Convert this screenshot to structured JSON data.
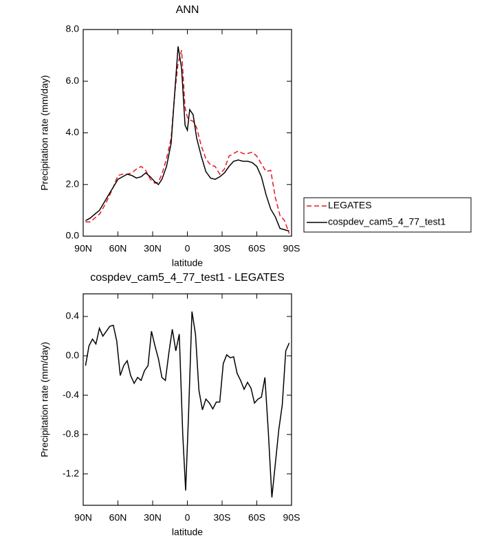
{
  "chart_data": [
    {
      "type": "line",
      "title": "ANN",
      "x_label": "latitude",
      "y_label": "Precipitation rate (mm/day)",
      "x": [
        88,
        84,
        80,
        76,
        72,
        68,
        64,
        60,
        56,
        52,
        48,
        44,
        40,
        36,
        32,
        28,
        25,
        22,
        18,
        14,
        11,
        8,
        5,
        2,
        0,
        -2,
        -5,
        -8,
        -12,
        -16,
        -20,
        -24,
        -28,
        -32,
        -36,
        -40,
        -44,
        -48,
        -52,
        -56,
        -60,
        -64,
        -68,
        -72,
        -76,
        -80,
        -84,
        -88
      ],
      "series": [
        {
          "name": "LEGATES",
          "color": "#e8141e",
          "dash": true,
          "values": [
            0.55,
            0.55,
            0.7,
            0.85,
            1.15,
            1.5,
            1.9,
            2.35,
            2.4,
            2.4,
            2.45,
            2.6,
            2.7,
            2.55,
            2.2,
            2.05,
            2.1,
            2.4,
            3.0,
            3.8,
            5.5,
            6.7,
            7.2,
            5.0,
            4.6,
            4.5,
            4.45,
            4.2,
            3.5,
            3.0,
            2.75,
            2.7,
            2.4,
            2.6,
            3.1,
            3.2,
            3.3,
            3.2,
            3.2,
            3.25,
            3.1,
            2.8,
            2.5,
            2.55,
            1.5,
            0.8,
            0.6,
            0.1
          ]
        },
        {
          "name": "cospdev_cam5_4_77_test1",
          "color": "#000000",
          "dash": false,
          "values": [
            0.6,
            0.7,
            0.85,
            1.0,
            1.3,
            1.6,
            1.9,
            2.2,
            2.3,
            2.4,
            2.35,
            2.25,
            2.3,
            2.45,
            2.3,
            2.1,
            2.0,
            2.2,
            2.7,
            3.6,
            5.5,
            7.35,
            6.5,
            4.3,
            4.1,
            4.9,
            4.7,
            3.8,
            3.1,
            2.5,
            2.25,
            2.2,
            2.3,
            2.45,
            2.7,
            2.9,
            2.95,
            2.9,
            2.9,
            2.85,
            2.7,
            2.3,
            1.6,
            1.05,
            0.75,
            0.3,
            0.25,
            0.2
          ]
        }
      ],
      "xlim": [
        90,
        -90
      ],
      "xticks": [
        {
          "value": 90,
          "label": "90N"
        },
        {
          "value": 60,
          "label": "60N"
        },
        {
          "value": 30,
          "label": "30N"
        },
        0,
        {
          "value": -30,
          "label": "30S"
        },
        {
          "value": -60,
          "label": "60S"
        },
        {
          "value": -90,
          "label": "90S"
        }
      ],
      "ylim": [
        0,
        8
      ],
      "yticks": [
        {
          "value": 0,
          "label": "0.0"
        },
        {
          "value": 2,
          "label": "2.0"
        },
        {
          "value": 4,
          "label": "4.0"
        },
        {
          "value": 6,
          "label": "6.0"
        },
        {
          "value": 8,
          "label": "8.0"
        }
      ],
      "legend_position": "right"
    },
    {
      "type": "line",
      "title": "cospdev_cam5_4_77_test1 - LEGATES",
      "x_label": "latitude",
      "y_label": "Precipitation rate (mm/day)",
      "x": [
        88,
        85,
        82,
        79,
        76,
        73,
        70,
        67,
        64,
        61,
        58,
        55,
        52,
        49,
        46,
        43,
        40,
        37,
        34,
        31,
        28,
        25,
        22,
        19,
        16,
        13,
        10,
        7,
        4,
        1.5,
        -1,
        -4,
        -7,
        -10,
        -13,
        -16,
        -19,
        -22,
        -25,
        -28,
        -31,
        -34,
        -37,
        -40,
        -43,
        -46,
        -49,
        -52,
        -55,
        -58,
        -61,
        -64,
        -67,
        -70,
        -73,
        -76,
        -79,
        -82,
        -85,
        -88
      ],
      "values": [
        -0.1,
        0.1,
        0.17,
        0.12,
        0.28,
        0.2,
        0.25,
        0.3,
        0.31,
        0.15,
        -0.2,
        -0.1,
        -0.05,
        -0.2,
        -0.28,
        -0.22,
        -0.25,
        -0.15,
        -0.1,
        0.25,
        0.1,
        -0.03,
        -0.22,
        -0.25,
        0.03,
        0.27,
        0.05,
        0.22,
        -0.8,
        -1.37,
        -0.6,
        0.45,
        0.22,
        -0.35,
        -0.55,
        -0.44,
        -0.48,
        -0.54,
        -0.47,
        -0.47,
        -0.08,
        0.01,
        -0.02,
        -0.01,
        -0.18,
        -0.25,
        -0.34,
        -0.27,
        -0.33,
        -0.48,
        -0.44,
        -0.42,
        -0.22,
        -0.78,
        -1.44,
        -1.1,
        -0.75,
        -0.5,
        0.05,
        0.13
      ],
      "color": "#000000",
      "xlim": [
        90,
        -90
      ],
      "xticks": [
        {
          "value": 90,
          "label": "90N"
        },
        {
          "value": 60,
          "label": "60N"
        },
        {
          "value": 30,
          "label": "30N"
        },
        0,
        {
          "value": -30,
          "label": "30S"
        },
        {
          "value": -60,
          "label": "60S"
        },
        {
          "value": -90,
          "label": "90S"
        }
      ],
      "ylim": [
        -1.52,
        0.63
      ],
      "yticks": [
        -1.2,
        -0.8,
        -0.4,
        {
          "value": 0,
          "label": "0.0"
        },
        0.4
      ]
    }
  ]
}
